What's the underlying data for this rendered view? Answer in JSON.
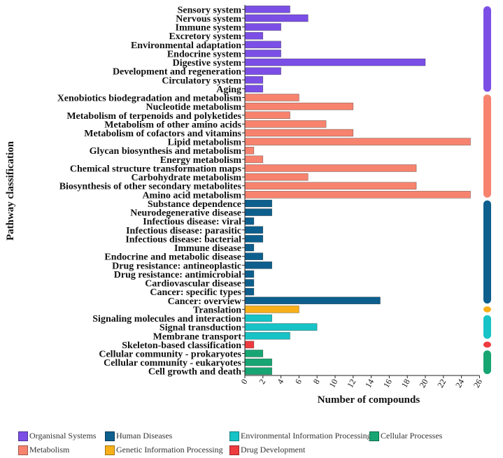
{
  "chart_data": {
    "type": "bar",
    "orientation": "horizontal",
    "xlabel": "Number of compounds",
    "ylabel": "Pathway classification",
    "xlim": [
      0,
      26
    ],
    "xticks": [
      "0",
      "2",
      "4",
      "6",
      "8",
      "10",
      "12",
      "14",
      "16",
      "18",
      "20",
      "22",
      "24",
      "26"
    ],
    "group_colors": {
      "Organismal Systems": "#7b4fe6",
      "Metabolism": "#f7836f",
      "Human Diseases": "#0d5f8d",
      "Genetic Information Processing": "#f7b01a",
      "Environmental Information Processing": "#17c3c6",
      "Drug Development": "#ee3b3f",
      "Cellular Processes": "#17a673"
    },
    "categories": [
      "Sensory system",
      "Nervous system",
      "Immune system",
      "Excretory system",
      "Environmental adaptation",
      "Endocrine system",
      "Digestive system",
      "Development and regeneration",
      "Circulatory system",
      "Aging",
      "Xenobiotics biodegradation and metabolism",
      "Nucleotide metabolism",
      "Metabolism of terpenoids and polyketides",
      "Metabolism of other amino acids",
      "Metabolism of cofactors and vitamins",
      "Lipid metabolism",
      "Glycan biosynthesis and metabolism",
      "Energy metabolism",
      "Chemical structure transformation maps",
      "Carbohydrate metabolism",
      "Biosynthesis of other secondary metabolites",
      "Amino acid metabolism",
      "Substance dependence",
      "Neurodegenerative disease",
      "Infectious disease: viral",
      "Infectious disease: parasitic",
      "Infectious disease: bacterial",
      "Immune disease",
      "Endocrine and metabolic disease",
      "Drug resistance: antineoplastic",
      "Drug resistance: antimicrobial",
      "Cardiovascular disease",
      "Cancer: specific types",
      "Cancer: overview",
      "Translation",
      "Signaling molecules and interaction",
      "Signal transduction",
      "Membrane transport",
      "Skeleton-based classification",
      "Cellular community - prokaryotes",
      "Cellular community - eukaryotes",
      "Cell growth and death"
    ],
    "values": [
      5,
      7,
      4,
      2,
      4,
      4,
      20,
      4,
      2,
      2,
      6,
      12,
      5,
      9,
      12,
      25,
      1,
      2,
      19,
      7,
      19,
      25,
      3,
      3,
      1,
      2,
      2,
      1,
      2,
      3,
      1,
      1,
      1,
      15,
      6,
      3,
      8,
      5,
      1,
      2,
      3,
      3
    ],
    "groups": [
      "Organismal Systems",
      "Organismal Systems",
      "Organismal Systems",
      "Organismal Systems",
      "Organismal Systems",
      "Organismal Systems",
      "Organismal Systems",
      "Organismal Systems",
      "Organismal Systems",
      "Organismal Systems",
      "Metabolism",
      "Metabolism",
      "Metabolism",
      "Metabolism",
      "Metabolism",
      "Metabolism",
      "Metabolism",
      "Metabolism",
      "Metabolism",
      "Metabolism",
      "Metabolism",
      "Metabolism",
      "Human Diseases",
      "Human Diseases",
      "Human Diseases",
      "Human Diseases",
      "Human Diseases",
      "Human Diseases",
      "Human Diseases",
      "Human Diseases",
      "Human Diseases",
      "Human Diseases",
      "Human Diseases",
      "Human Diseases",
      "Genetic Information Processing",
      "Environmental Information Processing",
      "Environmental Information Processing",
      "Environmental Information Processing",
      "Drug Development",
      "Cellular Processes",
      "Cellular Processes",
      "Cellular Processes"
    ],
    "legend": [
      {
        "name": "Organisnal Systems",
        "group": "Organismal Systems"
      },
      {
        "name": "Human Diseases",
        "group": "Human Diseases"
      },
      {
        "name": "Environmental Information Processing",
        "group": "Environmental Information Processing"
      },
      {
        "name": "Cellular Processes",
        "group": "Cellular Processes"
      },
      {
        "name": "Metabolism",
        "group": "Metabolism"
      },
      {
        "name": "Genetic Information Processing",
        "group": "Genetic Information Processing"
      },
      {
        "name": "Drug Development",
        "group": "Drug Development"
      }
    ],
    "legend_position": "bottom"
  }
}
